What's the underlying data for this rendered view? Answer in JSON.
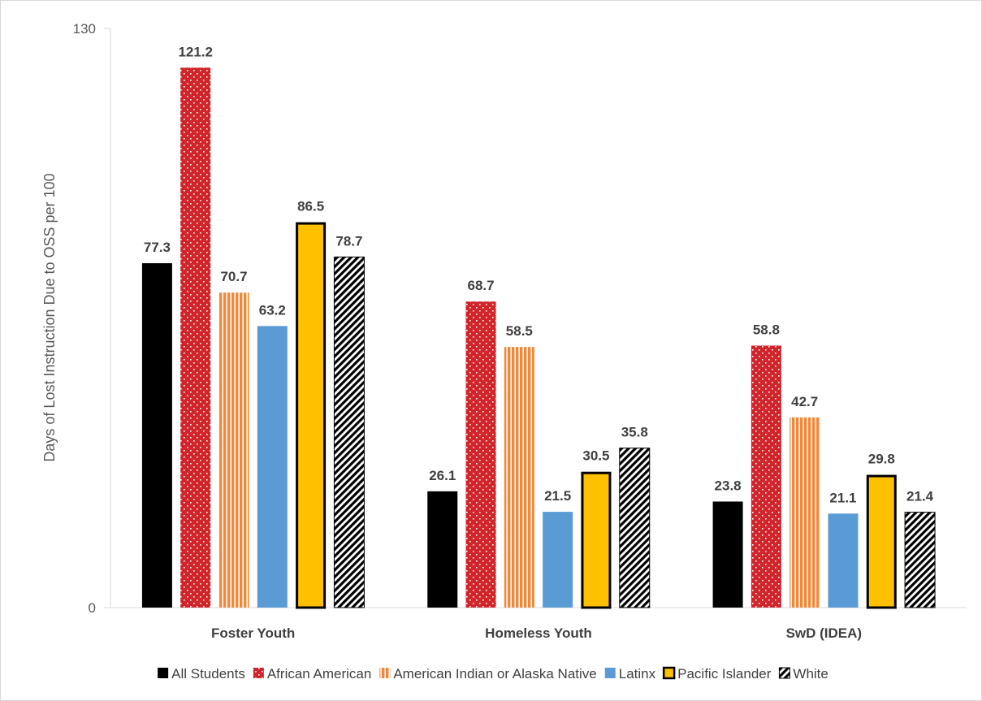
{
  "chart_data": {
    "type": "bar",
    "title": "",
    "xlabel": "",
    "ylabel": "Days of Lost Instruction Due to OSS per 100",
    "ylim": [
      0,
      130
    ],
    "yticks": [
      0,
      130
    ],
    "grid": false,
    "legend_position": "bottom",
    "categories": [
      "Foster Youth",
      "Homeless Youth",
      "SwD (IDEA)"
    ],
    "series": [
      {
        "name": "All Students",
        "values": [
          77.3,
          26.1,
          23.8
        ],
        "color": "#000000",
        "pattern": "solid"
      },
      {
        "name": "African American",
        "values": [
          121.2,
          68.7,
          58.8
        ],
        "color": "#d0252b",
        "pattern": "dots"
      },
      {
        "name": "American Indian or Alaska Native",
        "values": [
          70.7,
          58.5,
          42.7
        ],
        "color": "#f0873a",
        "pattern": "vertical-stripes"
      },
      {
        "name": "Latinx",
        "values": [
          63.2,
          21.5,
          21.1
        ],
        "color": "#5b9bd5",
        "pattern": "solid"
      },
      {
        "name": "Pacific Islander",
        "values": [
          86.5,
          30.5,
          29.8
        ],
        "color": "#ffc000",
        "pattern": "thick-border"
      },
      {
        "name": "White",
        "values": [
          78.7,
          35.8,
          21.4
        ],
        "color": "#000000",
        "pattern": "diagonal-hatch"
      }
    ]
  }
}
